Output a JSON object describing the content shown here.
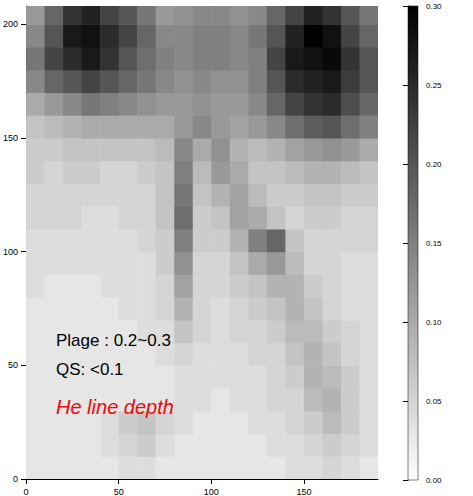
{
  "chart_data": {
    "type": "heatmap",
    "xlim": [
      0,
      190
    ],
    "ylim": [
      0,
      208
    ],
    "xticks": [
      0,
      50,
      100,
      150
    ],
    "yticks": [
      0,
      50,
      100,
      150,
      200
    ],
    "x": [
      5,
      15,
      25,
      35,
      45,
      55,
      65,
      75,
      85,
      95,
      105,
      115,
      125,
      135,
      145,
      155,
      165,
      175,
      185
    ],
    "y": [
      5,
      15,
      25,
      35,
      45,
      55,
      65,
      75,
      85,
      95,
      105,
      115,
      125,
      135,
      145,
      155,
      165,
      175,
      185,
      195,
      205
    ],
    "cells": [
      [
        0.03,
        0.03,
        0.03,
        0.03,
        0.03,
        0.04,
        0.04,
        0.03,
        0.03,
        0.03,
        0.03,
        0.03,
        0.03,
        0.03,
        0.04,
        0.04,
        0.05,
        0.04,
        0.03
      ],
      [
        0.03,
        0.03,
        0.03,
        0.03,
        0.04,
        0.05,
        0.06,
        0.04,
        0.03,
        0.03,
        0.03,
        0.03,
        0.03,
        0.04,
        0.04,
        0.05,
        0.06,
        0.05,
        0.04
      ],
      [
        0.03,
        0.03,
        0.03,
        0.03,
        0.04,
        0.06,
        0.07,
        0.05,
        0.04,
        0.03,
        0.03,
        0.03,
        0.04,
        0.04,
        0.05,
        0.06,
        0.08,
        0.06,
        0.04
      ],
      [
        0.03,
        0.03,
        0.03,
        0.03,
        0.03,
        0.03,
        0.03,
        0.03,
        0.04,
        0.04,
        0.03,
        0.04,
        0.04,
        0.05,
        0.05,
        0.08,
        0.09,
        0.06,
        0.04
      ],
      [
        0.03,
        0.03,
        0.03,
        0.03,
        0.03,
        0.03,
        0.03,
        0.03,
        0.04,
        0.04,
        0.04,
        0.04,
        0.04,
        0.05,
        0.06,
        0.09,
        0.08,
        0.06,
        0.04
      ],
      [
        0.03,
        0.03,
        0.03,
        0.03,
        0.03,
        0.03,
        0.03,
        0.04,
        0.05,
        0.04,
        0.04,
        0.04,
        0.05,
        0.05,
        0.07,
        0.09,
        0.07,
        0.05,
        0.04
      ],
      [
        0.03,
        0.03,
        0.03,
        0.03,
        0.03,
        0.03,
        0.04,
        0.04,
        0.07,
        0.05,
        0.04,
        0.05,
        0.05,
        0.06,
        0.08,
        0.08,
        0.06,
        0.05,
        0.04
      ],
      [
        0.03,
        0.03,
        0.03,
        0.03,
        0.03,
        0.04,
        0.04,
        0.05,
        0.09,
        0.05,
        0.04,
        0.05,
        0.06,
        0.07,
        0.09,
        0.07,
        0.05,
        0.04,
        0.04
      ],
      [
        0.04,
        0.03,
        0.03,
        0.03,
        0.04,
        0.04,
        0.04,
        0.05,
        0.11,
        0.05,
        0.05,
        0.06,
        0.07,
        0.09,
        0.09,
        0.06,
        0.05,
        0.04,
        0.04
      ],
      [
        0.04,
        0.04,
        0.04,
        0.04,
        0.04,
        0.04,
        0.04,
        0.06,
        0.13,
        0.05,
        0.05,
        0.07,
        0.1,
        0.12,
        0.08,
        0.05,
        0.05,
        0.04,
        0.04
      ],
      [
        0.04,
        0.04,
        0.04,
        0.04,
        0.04,
        0.04,
        0.05,
        0.06,
        0.15,
        0.06,
        0.06,
        0.09,
        0.15,
        0.18,
        0.07,
        0.05,
        0.05,
        0.05,
        0.05
      ],
      [
        0.05,
        0.05,
        0.05,
        0.04,
        0.04,
        0.05,
        0.05,
        0.07,
        0.17,
        0.06,
        0.07,
        0.11,
        0.1,
        0.07,
        0.05,
        0.06,
        0.06,
        0.05,
        0.05
      ],
      [
        0.05,
        0.05,
        0.05,
        0.05,
        0.05,
        0.05,
        0.05,
        0.07,
        0.16,
        0.07,
        0.09,
        0.11,
        0.08,
        0.06,
        0.06,
        0.07,
        0.07,
        0.06,
        0.06
      ],
      [
        0.06,
        0.05,
        0.06,
        0.06,
        0.05,
        0.05,
        0.06,
        0.07,
        0.15,
        0.08,
        0.12,
        0.1,
        0.07,
        0.07,
        0.08,
        0.09,
        0.09,
        0.08,
        0.07
      ],
      [
        0.06,
        0.06,
        0.07,
        0.07,
        0.07,
        0.07,
        0.07,
        0.08,
        0.14,
        0.1,
        0.13,
        0.09,
        0.08,
        0.09,
        0.11,
        0.12,
        0.13,
        0.12,
        0.1
      ],
      [
        0.07,
        0.08,
        0.09,
        0.1,
        0.1,
        0.1,
        0.1,
        0.1,
        0.12,
        0.14,
        0.12,
        0.11,
        0.12,
        0.14,
        0.17,
        0.19,
        0.2,
        0.17,
        0.15
      ],
      [
        0.1,
        0.12,
        0.14,
        0.16,
        0.15,
        0.14,
        0.13,
        0.12,
        0.12,
        0.13,
        0.12,
        0.12,
        0.14,
        0.18,
        0.22,
        0.24,
        0.25,
        0.21,
        0.18
      ],
      [
        0.14,
        0.18,
        0.2,
        0.22,
        0.2,
        0.18,
        0.16,
        0.14,
        0.13,
        0.14,
        0.13,
        0.13,
        0.15,
        0.2,
        0.25,
        0.26,
        0.27,
        0.23,
        0.2
      ],
      [
        0.16,
        0.22,
        0.25,
        0.27,
        0.24,
        0.2,
        0.17,
        0.15,
        0.14,
        0.15,
        0.15,
        0.14,
        0.15,
        0.22,
        0.27,
        0.28,
        0.29,
        0.24,
        0.2
      ],
      [
        0.14,
        0.2,
        0.27,
        0.28,
        0.25,
        0.22,
        0.18,
        0.14,
        0.14,
        0.15,
        0.15,
        0.14,
        0.16,
        0.2,
        0.26,
        0.3,
        0.28,
        0.22,
        0.18
      ],
      [
        0.12,
        0.18,
        0.24,
        0.26,
        0.22,
        0.2,
        0.16,
        0.12,
        0.13,
        0.14,
        0.14,
        0.13,
        0.14,
        0.18,
        0.22,
        0.26,
        0.24,
        0.2,
        0.16
      ]
    ],
    "colorbar": {
      "range": [
        0,
        0.3
      ],
      "ticks": [
        {
          "value": 0,
          "label": "0.00"
        },
        {
          "value": 0.05,
          "label": "0.05"
        },
        {
          "value": 0.1,
          "label": "0.10"
        },
        {
          "value": 0.15,
          "label": "0.15"
        },
        {
          "value": 0.2,
          "label": "0.20"
        },
        {
          "value": 0.25,
          "label": "0.25"
        },
        {
          "value": 0.3,
          "label": "0.30"
        }
      ]
    },
    "annotations": [
      {
        "text": "Plage : 0.2~0.3",
        "color": "#000000"
      },
      {
        "text": "QS: <0.1",
        "color": "#000000"
      },
      {
        "text": "He line depth",
        "color": "#ff0000"
      }
    ]
  }
}
